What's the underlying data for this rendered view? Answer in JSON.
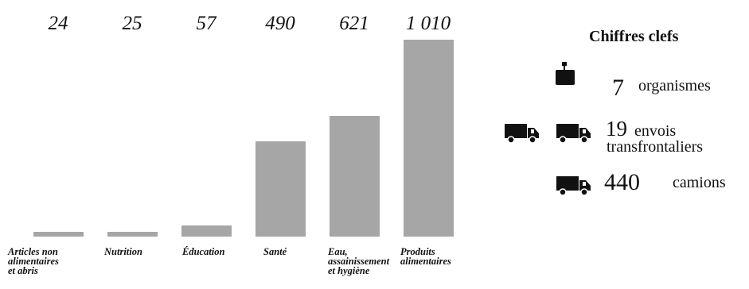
{
  "chart_data": {
    "type": "bar",
    "categories": [
      "Articles non\nalimentaires\net abris",
      "Nutrition",
      "Éducation",
      "Santé",
      "Eau,\nassainissement\net hygiène",
      "Produits\nalimentaires"
    ],
    "values": [
      24,
      25,
      57,
      490,
      621,
      1010
    ],
    "value_labels": [
      "24",
      "25",
      "57",
      "490",
      "621",
      "1 010"
    ],
    "bar_color": "#a6a6a6",
    "ylim": [
      0,
      1010
    ],
    "grid": false,
    "legend": "none"
  },
  "key_figures": {
    "title": "Chiffres clefs",
    "rows": [
      {
        "icon": "briefcase-icon",
        "number": "7",
        "label": "organismes"
      },
      {
        "icon": "truck-icon",
        "number": "19",
        "label": "envois\ntransfrontaliers"
      },
      {
        "icon": "truck-icon",
        "number": "440",
        "label": "camions"
      }
    ]
  }
}
